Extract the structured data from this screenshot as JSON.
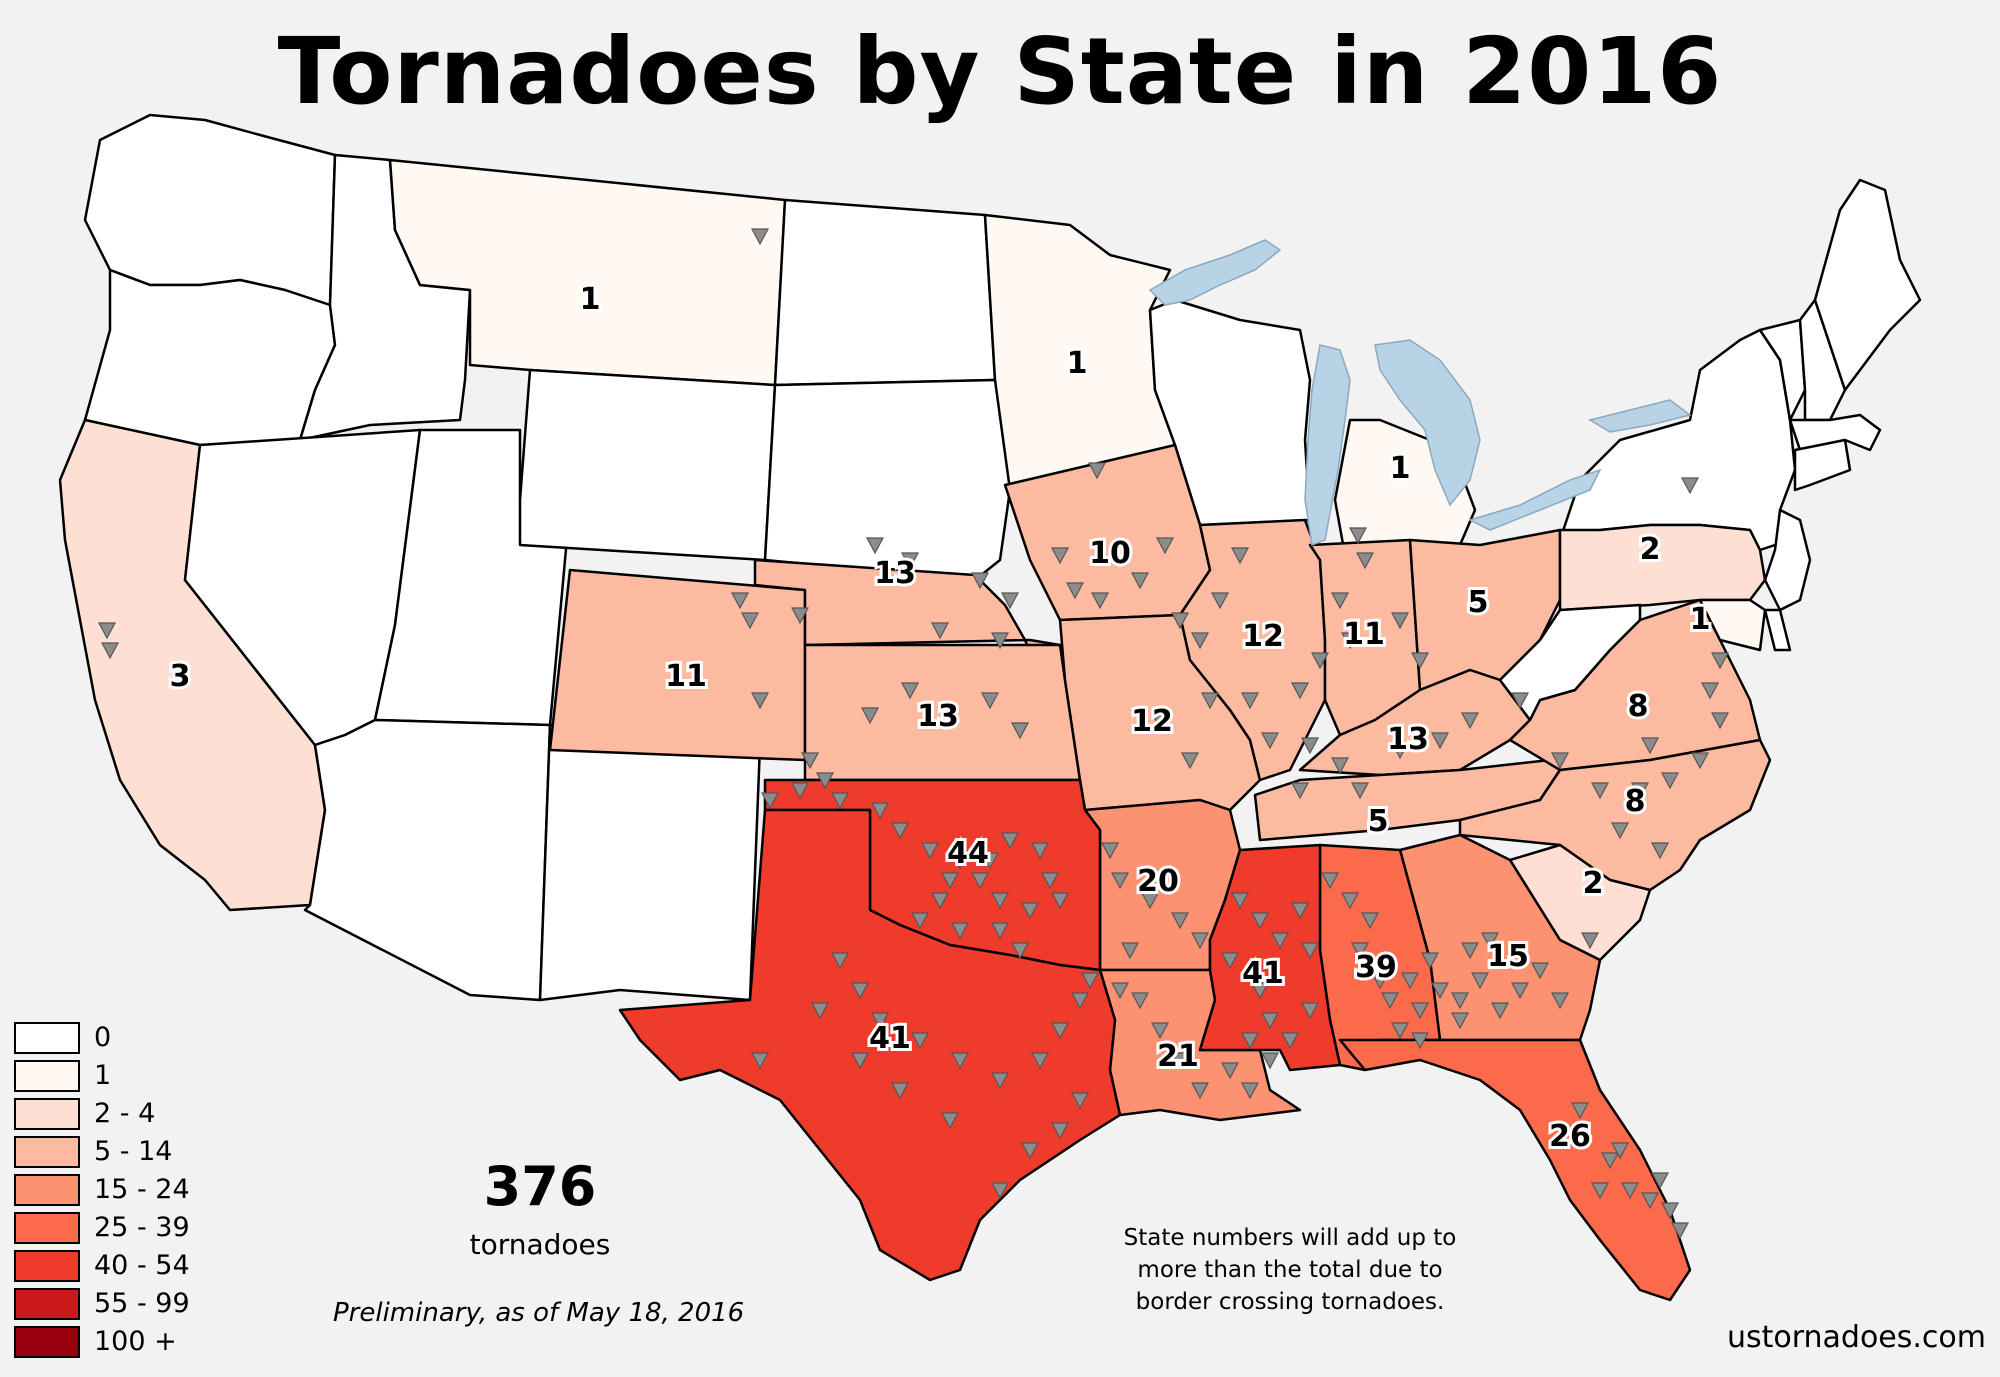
{
  "title": "Tornadoes by State in 2016",
  "total": "376",
  "total_label": "tornadoes",
  "preliminary": "Preliminary, as of May 18, 2016",
  "footnote": "State numbers will add up to more than the total due to border crossing tornadoes.",
  "source": "ustornadoes.com",
  "legend": [
    {
      "label": "0",
      "color": "#ffffff"
    },
    {
      "label": "1",
      "color": "#fff8f3"
    },
    {
      "label": "2 - 4",
      "color": "#fde0d3"
    },
    {
      "label": "5 - 14",
      "color": "#fcbba1"
    },
    {
      "label": "15 - 24",
      "color": "#fc9272"
    },
    {
      "label": "25 - 39",
      "color": "#fb6a4a"
    },
    {
      "label": "40 - 54",
      "color": "#ef3b2c"
    },
    {
      "label": "55 - 99",
      "color": "#cb181d"
    },
    {
      "label": "100 +",
      "color": "#99000d"
    }
  ],
  "states": [
    {
      "id": "WA",
      "count": "",
      "color": "#ffffff"
    },
    {
      "id": "OR",
      "count": "",
      "color": "#ffffff"
    },
    {
      "id": "ID",
      "count": "",
      "color": "#ffffff"
    },
    {
      "id": "MT",
      "count": "1",
      "color": "#fff8f3"
    },
    {
      "id": "ND",
      "count": "",
      "color": "#ffffff"
    },
    {
      "id": "MN",
      "count": "1",
      "color": "#fff8f3"
    },
    {
      "id": "WI",
      "count": "",
      "color": "#ffffff"
    },
    {
      "id": "MI",
      "count": "1",
      "color": "#fff8f3"
    },
    {
      "id": "NY",
      "count": "",
      "color": "#ffffff"
    },
    {
      "id": "VT",
      "count": "",
      "color": "#ffffff"
    },
    {
      "id": "NH",
      "count": "",
      "color": "#ffffff"
    },
    {
      "id": "ME",
      "count": "",
      "color": "#ffffff"
    },
    {
      "id": "MA",
      "count": "",
      "color": "#ffffff"
    },
    {
      "id": "CT",
      "count": "",
      "color": "#ffffff"
    },
    {
      "id": "NJ",
      "count": "",
      "color": "#ffffff"
    },
    {
      "id": "CA",
      "count": "3",
      "color": "#fde0d3"
    },
    {
      "id": "NV",
      "count": "",
      "color": "#ffffff"
    },
    {
      "id": "UT",
      "count": "",
      "color": "#ffffff"
    },
    {
      "id": "WY",
      "count": "",
      "color": "#ffffff"
    },
    {
      "id": "SD",
      "count": "",
      "color": "#ffffff"
    },
    {
      "id": "AZ",
      "count": "",
      "color": "#ffffff"
    },
    {
      "id": "NM",
      "count": "",
      "color": "#ffffff"
    },
    {
      "id": "CO",
      "count": "11",
      "color": "#fcbba1"
    },
    {
      "id": "NE",
      "count": "13",
      "color": "#fcbba1"
    },
    {
      "id": "KS",
      "count": "13",
      "color": "#fcbba1"
    },
    {
      "id": "IA",
      "count": "10",
      "color": "#fcbba1"
    },
    {
      "id": "MO",
      "count": "12",
      "color": "#fcbba1"
    },
    {
      "id": "IL",
      "count": "12",
      "color": "#fcbba1"
    },
    {
      "id": "IN",
      "count": "11",
      "color": "#fcbba1"
    },
    {
      "id": "OH",
      "count": "5",
      "color": "#fcbba1"
    },
    {
      "id": "KY",
      "count": "13",
      "color": "#fcbba1"
    },
    {
      "id": "TN",
      "count": "5",
      "color": "#fcbba1"
    },
    {
      "id": "VA",
      "count": "8",
      "color": "#fcbba1"
    },
    {
      "id": "NC",
      "count": "8",
      "color": "#fcbba1"
    },
    {
      "id": "PA",
      "count": "2",
      "color": "#fde0d3"
    },
    {
      "id": "SC",
      "count": "2",
      "color": "#fde0d3"
    },
    {
      "id": "MD",
      "count": "1",
      "color": "#fff8f3"
    },
    {
      "id": "DE",
      "count": "",
      "color": "#ffffff"
    },
    {
      "id": "WV",
      "count": "",
      "color": "#ffffff"
    },
    {
      "id": "AR",
      "count": "20",
      "color": "#fc9272"
    },
    {
      "id": "LA",
      "count": "21",
      "color": "#fc9272"
    },
    {
      "id": "GA",
      "count": "15",
      "color": "#fc9272"
    },
    {
      "id": "AL",
      "count": "39",
      "color": "#fb6a4a"
    },
    {
      "id": "FL",
      "count": "26",
      "color": "#fb6a4a"
    },
    {
      "id": "OK",
      "count": "44",
      "color": "#ef3b2c"
    },
    {
      "id": "TX",
      "count": "41",
      "color": "#ef3b2c"
    },
    {
      "id": "MS",
      "count": "41",
      "color": "#ef3b2c"
    }
  ]
}
